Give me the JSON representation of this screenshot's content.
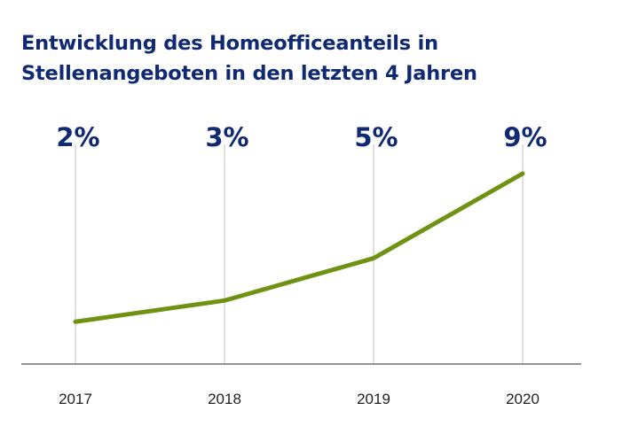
{
  "chart_data": {
    "type": "line",
    "title_lines": [
      "Entwicklung des Homeofficeanteils in",
      "Stellenangeboten in den letzten 4 Jahren"
    ],
    "categories": [
      "2017",
      "2018",
      "2019",
      "2020"
    ],
    "values": [
      2,
      3,
      5,
      9
    ],
    "data_labels": [
      "2%",
      "3%",
      "5%",
      "9%"
    ],
    "xlabel": "",
    "ylabel": "",
    "ylim": [
      0,
      9
    ],
    "grid": "vertical",
    "colors": {
      "line": "#6f9212",
      "text": "#0f2a72",
      "grid": "#cccccc",
      "axis": "#555555"
    }
  }
}
